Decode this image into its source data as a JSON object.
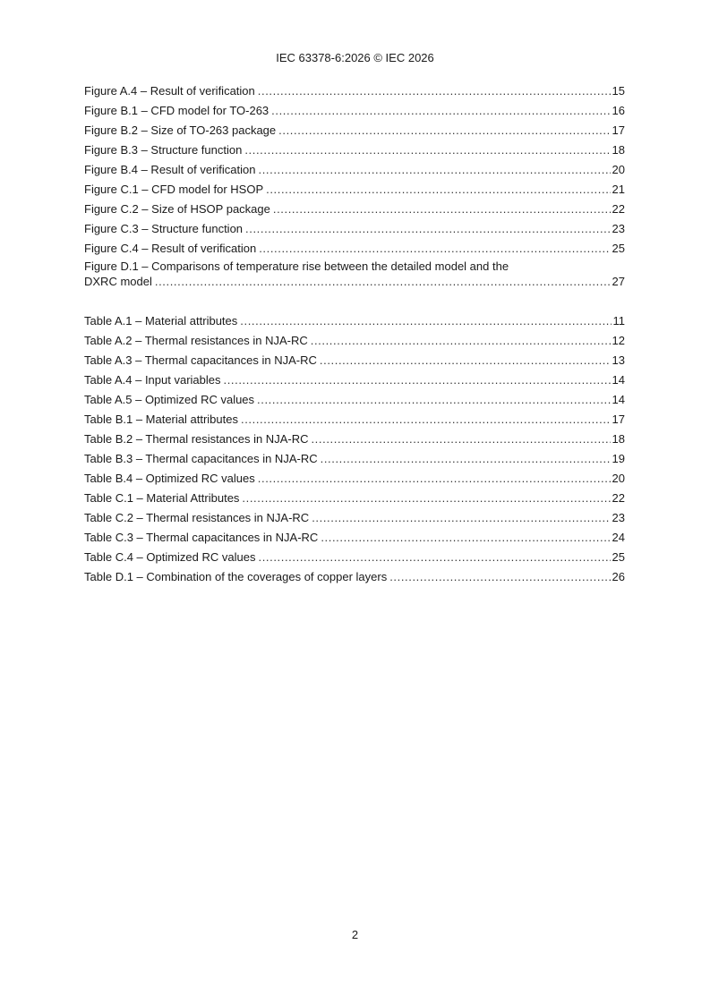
{
  "header": "IEC 63378-6:2026 © IEC 2026",
  "figures": [
    {
      "title": "Figure A.4 – Result of verification",
      "page": "15"
    },
    {
      "title": "Figure B.1 – CFD model for TO-263",
      "page": "16"
    },
    {
      "title": "Figure B.2 – Size of TO-263 package",
      "page": "17"
    },
    {
      "title": "Figure B.3 – Structure function",
      "page": "18"
    },
    {
      "title": "Figure B.4 – Result of verification",
      "page": "20"
    },
    {
      "title": "Figure C.1 – CFD model for HSOP",
      "page": "21"
    },
    {
      "title": "Figure C.2 – Size of HSOP package",
      "page": "22"
    },
    {
      "title": "Figure C.3 – Structure function",
      "page": "23"
    },
    {
      "title": "Figure C.4 – Result of verification",
      "page": "25"
    }
  ],
  "figure_d1": {
    "title_line1": "Figure D.1 – Comparisons of temperature rise between the detailed model and the",
    "title_line2": "DXRC model",
    "page": "27"
  },
  "tables": [
    {
      "title": "Table A.1 – Material attributes",
      "page": "11"
    },
    {
      "title": "Table A.2 – Thermal resistances in NJA-RC",
      "page": "12"
    },
    {
      "title": "Table A.3 – Thermal capacitances in NJA-RC",
      "page": "13"
    },
    {
      "title": "Table A.4 – Input variables",
      "page": "14"
    },
    {
      "title": "Table A.5 – Optimized RC values",
      "page": "14"
    },
    {
      "title": "Table B.1 – Material attributes",
      "page": "17"
    },
    {
      "title": "Table B.2 – Thermal resistances in NJA-RC",
      "page": "18"
    },
    {
      "title": "Table B.3 – Thermal capacitances in NJA-RC",
      "page": "19"
    },
    {
      "title": "Table B.4 – Optimized RC values",
      "page": "20"
    },
    {
      "title": "Table C.1 – Material Attributes",
      "page": "22"
    },
    {
      "title": "Table C.2 – Thermal resistances in NJA-RC",
      "page": "23"
    },
    {
      "title": "Table C.3 – Thermal capacitances in NJA-RC",
      "page": "24"
    },
    {
      "title": "Table C.4 – Optimized RC values",
      "page": "25"
    },
    {
      "title": "Table D.1 – Combination of the coverages of copper layers",
      "page": "26"
    }
  ],
  "page_number": "2"
}
